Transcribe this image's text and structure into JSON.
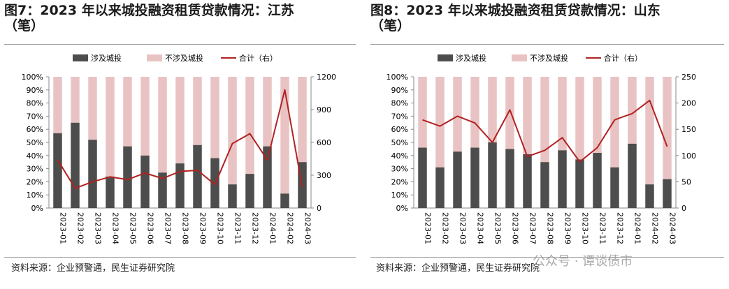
{
  "charts": [
    {
      "title_line1": "图7：2023 年以来城投融资租赁贷款情况：江苏",
      "title_line2": "（笔）",
      "source": "资料来源：企业预警通，民生证券研究院"
    },
    {
      "title_line1": "图8：2023 年以来城投融资租赁贷款情况：山东",
      "title_line2": "（笔）",
      "source": "资料来源：企业预警通，民生证券研究院"
    }
  ],
  "watermark": "公众号 · 谭谈债市",
  "colors": {
    "involved": "#4d4d4d",
    "not_involved": "#e9c3c3",
    "total": "#b22222"
  },
  "chart_data": [
    {
      "type": "bar",
      "stacked": true,
      "percent_stacked": true,
      "title": "图7：2023 年以来城投融资租赁贷款情况：江苏（笔）",
      "categories": [
        "2023-01",
        "2023-02",
        "2023-03",
        "2023-04",
        "2023-05",
        "2023-06",
        "2023-07",
        "2023-08",
        "2023-09",
        "2023-10",
        "2023-11",
        "2023-12",
        "2024-01",
        "2024-02",
        "2024-03"
      ],
      "series": [
        {
          "name": "涉及城投",
          "values": [
            57,
            65,
            52,
            24,
            47,
            40,
            27,
            34,
            48,
            38,
            18,
            26,
            47,
            11,
            35
          ]
        },
        {
          "name": "不涉及城投",
          "values": [
            43,
            35,
            48,
            76,
            53,
            60,
            73,
            66,
            52,
            62,
            82,
            74,
            53,
            89,
            65
          ]
        }
      ],
      "line_series": {
        "name": "合计（右）",
        "axis": "right",
        "values": [
          440,
          180,
          240,
          285,
          260,
          320,
          270,
          335,
          345,
          215,
          590,
          680,
          440,
          1080,
          190
        ]
      },
      "ylim": [
        0,
        100
      ],
      "y_ticks": [
        "0%",
        "10%",
        "20%",
        "30%",
        "40%",
        "50%",
        "60%",
        "70%",
        "80%",
        "90%",
        "100%"
      ],
      "y2lim": [
        0,
        1200
      ],
      "y2_ticks": [
        0,
        300,
        600,
        900,
        1200
      ],
      "legend_position": "top"
    },
    {
      "type": "bar",
      "stacked": true,
      "percent_stacked": true,
      "title": "图8：2023 年以来城投融资租赁贷款情况：山东（笔）",
      "categories": [
        "2023-01",
        "2023-02",
        "2023-03",
        "2023-04",
        "2023-05",
        "2023-06",
        "2023-07",
        "2023-08",
        "2023-09",
        "2023-10",
        "2023-11",
        "2023-12",
        "2024-01",
        "2024-02",
        "2024-03"
      ],
      "series": [
        {
          "name": "涉及城投",
          "values": [
            46,
            31,
            43,
            46,
            50,
            45,
            41,
            35,
            44,
            37,
            42,
            31,
            49,
            18,
            22
          ]
        },
        {
          "name": "不涉及城投",
          "values": [
            54,
            69,
            57,
            54,
            50,
            55,
            59,
            65,
            56,
            63,
            58,
            69,
            51,
            82,
            78
          ]
        }
      ],
      "line_series": {
        "name": "合计（右）",
        "axis": "right",
        "values": [
          168,
          156,
          175,
          162,
          125,
          187,
          98,
          110,
          134,
          88,
          115,
          168,
          180,
          205,
          117
        ]
      },
      "ylim": [
        0,
        100
      ],
      "y_ticks": [
        "0%",
        "10%",
        "20%",
        "30%",
        "40%",
        "50%",
        "60%",
        "70%",
        "80%",
        "90%",
        "100%"
      ],
      "y2lim": [
        0,
        250
      ],
      "y2_ticks": [
        0,
        50,
        100,
        150,
        200,
        250
      ],
      "legend_position": "top"
    }
  ]
}
